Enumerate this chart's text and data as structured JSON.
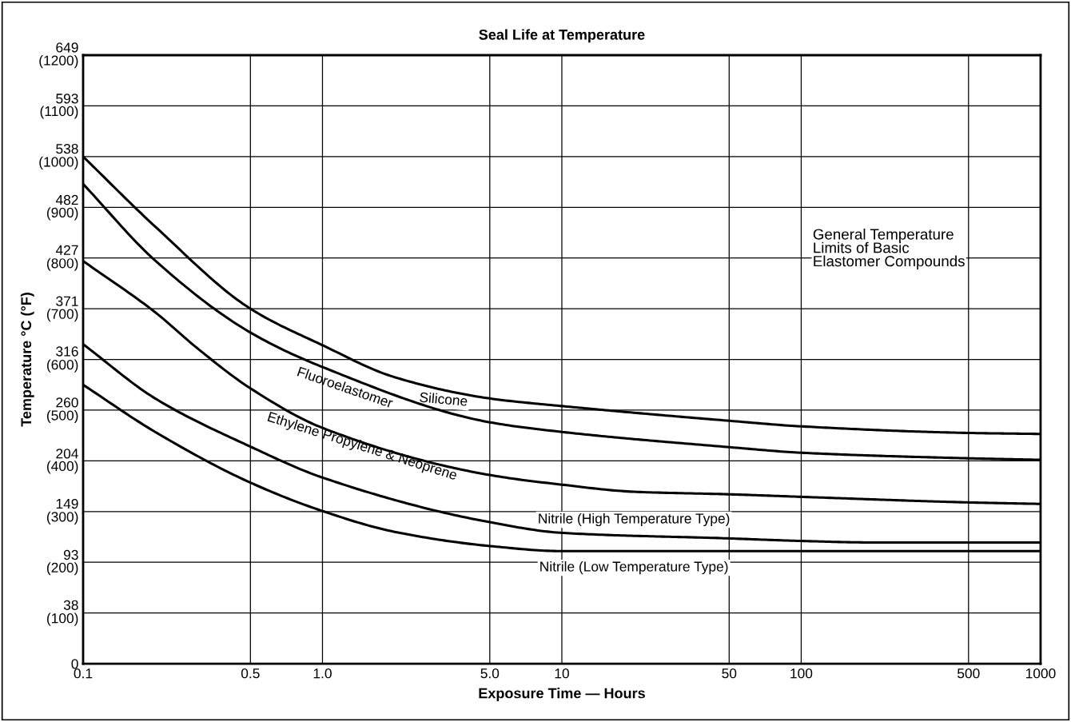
{
  "chart_data": {
    "type": "line",
    "title": "Seal Life at Temperature",
    "xlabel": "Exposure Time — Hours",
    "ylabel": "Temperature °C (°F)",
    "log": "x",
    "grid": true,
    "legend": false,
    "marker": "none",
    "line_style": "solid",
    "xlim": [
      0.1,
      1000
    ],
    "xticks": [
      {
        "value": 0.1,
        "label": "0.1"
      },
      {
        "value": 0.5,
        "label": "0.5"
      },
      {
        "value": 1,
        "label": "1.0"
      },
      {
        "value": 5,
        "label": "5.0"
      },
      10,
      50,
      100,
      500,
      1000
    ],
    "ylim": [
      0,
      1200
    ],
    "yticks": [
      0,
      {
        "value": 100,
        "label": "(100)"
      },
      {
        "value": 200,
        "label": "(200)"
      },
      {
        "value": 300,
        "label": "(300)"
      },
      {
        "value": 400,
        "label": "(400)"
      },
      {
        "value": 500,
        "label": "(500)"
      },
      {
        "value": 600,
        "label": "(600)"
      },
      {
        "value": 700,
        "label": "(700)"
      },
      {
        "value": 800,
        "label": "(800)"
      },
      {
        "value": 900,
        "label": "(900)"
      },
      {
        "value": 1000,
        "label": "(1000)"
      },
      {
        "value": 1100,
        "label": "(1100)"
      },
      {
        "value": 1200,
        "label": "(1200)"
      }
    ],
    "y2lim": [
      -17.8,
      649
    ],
    "y2ticks": [
      38,
      93,
      149,
      204,
      260,
      316,
      371,
      427,
      482,
      538,
      593,
      649
    ],
    "series": [
      {
        "name": "Silicone",
        "color": "#000000",
        "x": [
          0.1,
          0.2,
          0.5,
          1,
          2,
          5,
          10,
          50,
          100,
          500,
          1000
        ],
        "values": [
          1000,
          862,
          700,
          628,
          565,
          523,
          508,
          479,
          468,
          455,
          453
        ]
      },
      {
        "name": "Fluoroelastomer",
        "color": "#000000",
        "x": [
          0.1,
          0.2,
          0.5,
          1,
          5,
          10,
          50,
          100,
          500,
          1000
        ],
        "values": [
          946,
          795,
          653,
          585,
          476,
          457,
          427,
          416,
          405,
          402
        ]
      },
      {
        "name": "Ethylene Propylene & Neoprene",
        "color": "#000000",
        "x": [
          0.1,
          0.2,
          0.3,
          0.5,
          1,
          5,
          10,
          20,
          50,
          100,
          500,
          1000
        ],
        "values": [
          794,
          693,
          622,
          543,
          465,
          372,
          353,
          339,
          334,
          329,
          318,
          315
        ]
      },
      {
        "name": "Nitrile (High Temperature Type)",
        "color": "#000000",
        "x": [
          0.1,
          0.2,
          0.5,
          1,
          5,
          10,
          50,
          100,
          200,
          1000
        ],
        "values": [
          630,
          523,
          428,
          367,
          279,
          258,
          247,
          242,
          239,
          239
        ]
      },
      {
        "name": "Nitrile (Low Temperature Type)",
        "color": "#000000",
        "x": [
          0.1,
          0.2,
          0.5,
          1,
          2,
          5,
          10,
          100,
          1000
        ],
        "values": [
          550,
          457,
          357,
          301,
          260,
          232,
          222,
          222,
          222
        ]
      }
    ],
    "annotations": [
      "General Temperature\nLimits of Basic\nElastomer Compounds"
    ]
  }
}
